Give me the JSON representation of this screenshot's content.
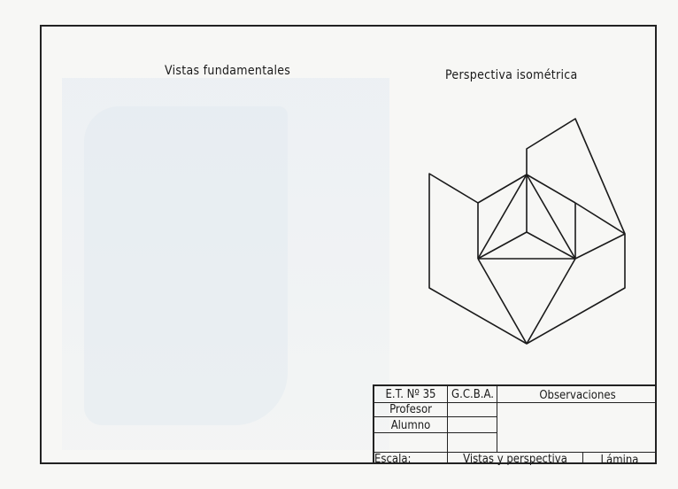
{
  "drawing": {
    "heading_left": "Vistas fundamentales",
    "heading_right": "Perspectiva isométrica",
    "line_color": "#1a1a1a"
  },
  "title_block": {
    "school": "E.T. Nº 35",
    "authority": "G.C.B.A.",
    "observations": "Observaciones",
    "teacher_label": "Profesor",
    "student_label": "Alumno",
    "scale_label": "Escala:",
    "subject": "Vistas y perspectiva",
    "sheet_label": "Lámina"
  }
}
